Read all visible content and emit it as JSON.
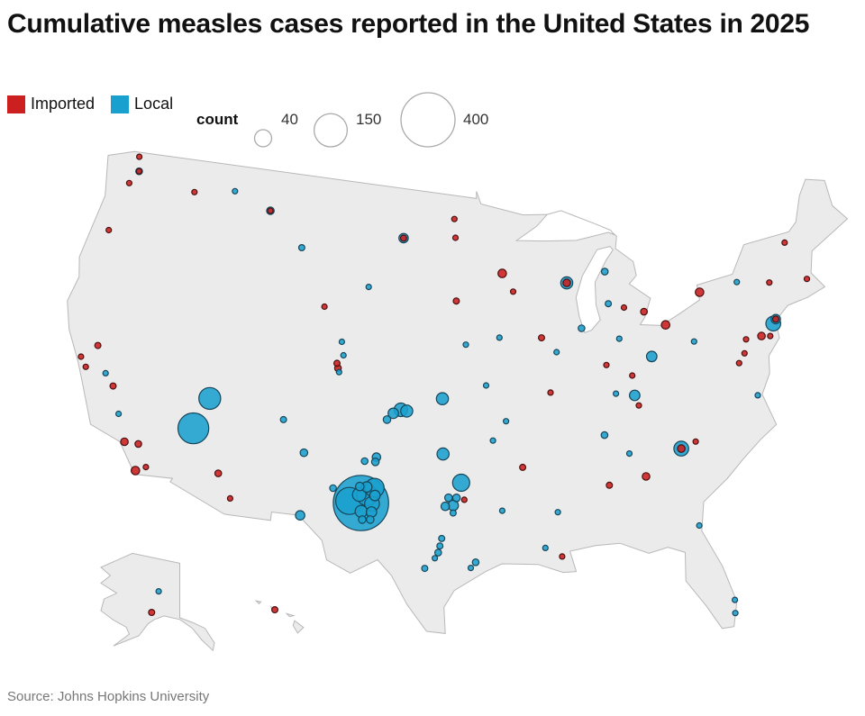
{
  "title": "Cumulative measles cases reported in the United States in 2025",
  "source": "Source: Johns Hopkins University",
  "legend": {
    "types": [
      {
        "label": "Imported",
        "color": "#cc1f1f"
      },
      {
        "label": "Local",
        "color": "#1aa0cf"
      }
    ],
    "size_title": "count",
    "sizes": [
      {
        "value": 40,
        "label": "40"
      },
      {
        "value": 150,
        "label": "150"
      },
      {
        "value": 400,
        "label": "400"
      }
    ]
  },
  "chart_data": {
    "type": "bubble-map",
    "projection": "albers-usa",
    "encoding": {
      "color": "type",
      "size": "count"
    },
    "points": [
      {
        "lon": -102.65,
        "lat": 32.74,
        "count": 420,
        "type": "Local"
      },
      {
        "lon": -103.4,
        "lat": 32.8,
        "count": 100,
        "type": "Local"
      },
      {
        "lon": -114.0,
        "lat": 35.5,
        "count": 130,
        "type": "Local"
      },
      {
        "lon": -113.3,
        "lat": 37.2,
        "count": 65,
        "type": "Local"
      },
      {
        "lon": -101.85,
        "lat": 33.58,
        "count": 50,
        "type": "Local"
      },
      {
        "lon": -102.3,
        "lat": 33.17,
        "count": 60,
        "type": "Local"
      },
      {
        "lon": -101.95,
        "lat": 32.74,
        "count": 30,
        "type": "Local"
      },
      {
        "lon": -102.8,
        "lat": 33.17,
        "count": 25,
        "type": "Local"
      },
      {
        "lon": -101.8,
        "lat": 33.18,
        "count": 15,
        "type": "Local"
      },
      {
        "lon": -102.8,
        "lat": 33.6,
        "count": 10,
        "type": "Local"
      },
      {
        "lon": -101.95,
        "lat": 32.3,
        "count": 15,
        "type": "Local"
      },
      {
        "lon": -102.5,
        "lat": 31.87,
        "count": 8,
        "type": "Local"
      },
      {
        "lon": -102.0,
        "lat": 31.9,
        "count": 8,
        "type": "Local"
      },
      {
        "lon": -102.6,
        "lat": 32.3,
        "count": 20,
        "type": "Local"
      },
      {
        "lon": -102.35,
        "lat": 33.6,
        "count": 15,
        "type": "Local"
      },
      {
        "lon": -101.85,
        "lat": 35.2,
        "count": 10,
        "type": "Local"
      },
      {
        "lon": -101.9,
        "lat": 34.95,
        "count": 8,
        "type": "Local"
      },
      {
        "lon": -102.6,
        "lat": 34.95,
        "count": 6,
        "type": "Local"
      },
      {
        "lon": -106.4,
        "lat": 31.8,
        "count": 12,
        "type": "Local"
      },
      {
        "lon": -104.5,
        "lat": 33.4,
        "count": 6,
        "type": "Local"
      },
      {
        "lon": -106.6,
        "lat": 35.1,
        "count": 8,
        "type": "Local"
      },
      {
        "lon": -108.2,
        "lat": 36.7,
        "count": 5,
        "type": "Local"
      },
      {
        "lon": -96.3,
        "lat": 34.0,
        "count": 40,
        "type": "Local"
      },
      {
        "lon": -96.8,
        "lat": 32.8,
        "count": 15,
        "type": "Local"
      },
      {
        "lon": -97.3,
        "lat": 32.75,
        "count": 10,
        "type": "Local"
      },
      {
        "lon": -96.6,
        "lat": 33.2,
        "count": 8,
        "type": "Local"
      },
      {
        "lon": -97.1,
        "lat": 33.2,
        "count": 8,
        "type": "Local"
      },
      {
        "lon": -96.8,
        "lat": 32.4,
        "count": 5,
        "type": "Local"
      },
      {
        "lon": -96.1,
        "lat": 33.1,
        "count": 4,
        "type": "Imported"
      },
      {
        "lon": -97.7,
        "lat": 30.3,
        "count": 6,
        "type": "Local"
      },
      {
        "lon": -97.6,
        "lat": 30.65,
        "count": 5,
        "type": "Local"
      },
      {
        "lon": -97.5,
        "lat": 31.05,
        "count": 5,
        "type": "Local"
      },
      {
        "lon": -98.5,
        "lat": 29.45,
        "count": 5,
        "type": "Local"
      },
      {
        "lon": -97.9,
        "lat": 30.0,
        "count": 4,
        "type": "Local"
      },
      {
        "lon": -95.4,
        "lat": 29.8,
        "count": 6,
        "type": "Local"
      },
      {
        "lon": -95.7,
        "lat": 29.5,
        "count": 4,
        "type": "Local"
      },
      {
        "lon": -97.5,
        "lat": 35.5,
        "count": 20,
        "type": "Local"
      },
      {
        "lon": -100.4,
        "lat": 37.75,
        "count": 25,
        "type": "Local"
      },
      {
        "lon": -100.0,
        "lat": 37.7,
        "count": 20,
        "type": "Local"
      },
      {
        "lon": -100.9,
        "lat": 37.55,
        "count": 15,
        "type": "Local"
      },
      {
        "lon": -101.3,
        "lat": 37.2,
        "count": 8,
        "type": "Local"
      },
      {
        "lon": -97.6,
        "lat": 38.4,
        "count": 20,
        "type": "Local"
      },
      {
        "lon": -104.9,
        "lat": 39.7,
        "count": 6,
        "type": "Imported"
      },
      {
        "lon": -105.0,
        "lat": 39.95,
        "count": 5,
        "type": "Imported"
      },
      {
        "lon": -104.8,
        "lat": 39.5,
        "count": 4,
        "type": "Local"
      },
      {
        "lon": -104.6,
        "lat": 40.4,
        "count": 4,
        "type": "Local"
      },
      {
        "lon": -111.9,
        "lat": 33.4,
        "count": 6,
        "type": "Imported"
      },
      {
        "lon": -110.9,
        "lat": 32.2,
        "count": 4,
        "type": "Imported"
      },
      {
        "lon": -118.2,
        "lat": 34.05,
        "count": 8,
        "type": "Imported"
      },
      {
        "lon": -117.1,
        "lat": 32.7,
        "count": 10,
        "type": "Imported"
      },
      {
        "lon": -117.3,
        "lat": 34.1,
        "count": 6,
        "type": "Imported"
      },
      {
        "lon": -116.5,
        "lat": 33.0,
        "count": 4,
        "type": "Imported"
      },
      {
        "lon": -122.4,
        "lat": 37.8,
        "count": 4,
        "type": "Imported"
      },
      {
        "lon": -121.9,
        "lat": 37.35,
        "count": 4,
        "type": "Imported"
      },
      {
        "lon": -121.5,
        "lat": 38.6,
        "count": 5,
        "type": "Imported"
      },
      {
        "lon": -120.5,
        "lat": 37.3,
        "count": 4,
        "type": "Local"
      },
      {
        "lon": -119.8,
        "lat": 36.75,
        "count": 5,
        "type": "Imported"
      },
      {
        "lon": -119.0,
        "lat": 35.4,
        "count": 4,
        "type": "Local"
      },
      {
        "lon": -122.3,
        "lat": 48.8,
        "count": 3,
        "type": "Imported"
      },
      {
        "lon": -122.0,
        "lat": 48.05,
        "count": 6,
        "type": "Local"
      },
      {
        "lon": -122.0,
        "lat": 48.05,
        "count": 3,
        "type": "Imported"
      },
      {
        "lon": -122.5,
        "lat": 47.3,
        "count": 3,
        "type": "Imported"
      },
      {
        "lon": -117.4,
        "lat": 47.7,
        "count": 3,
        "type": "Imported"
      },
      {
        "lon": -123.0,
        "lat": 44.6,
        "count": 3,
        "type": "Imported"
      },
      {
        "lon": -114.3,
        "lat": 48.2,
        "count": 4,
        "type": "Local"
      },
      {
        "lon": -111.3,
        "lat": 47.5,
        "count": 8,
        "type": "Local"
      },
      {
        "lon": -111.3,
        "lat": 47.5,
        "count": 3,
        "type": "Imported"
      },
      {
        "lon": -108.5,
        "lat": 45.8,
        "count": 5,
        "type": "Local"
      },
      {
        "lon": -106.3,
        "lat": 42.85,
        "count": 3,
        "type": "Imported"
      },
      {
        "lon": -104.8,
        "lat": 41.1,
        "count": 3,
        "type": "Local"
      },
      {
        "lon": -100.8,
        "lat": 46.8,
        "count": 12,
        "type": "Local"
      },
      {
        "lon": -100.8,
        "lat": 46.8,
        "count": 5,
        "type": "Imported"
      },
      {
        "lon": -96.8,
        "lat": 46.9,
        "count": 4,
        "type": "Imported"
      },
      {
        "lon": -96.9,
        "lat": 47.9,
        "count": 4,
        "type": "Imported"
      },
      {
        "lon": -103.2,
        "lat": 44.1,
        "count": 4,
        "type": "Local"
      },
      {
        "lon": -96.7,
        "lat": 43.55,
        "count": 5,
        "type": "Imported"
      },
      {
        "lon": -96.0,
        "lat": 41.25,
        "count": 3,
        "type": "Local"
      },
      {
        "lon": -93.27,
        "lat": 44.98,
        "count": 10,
        "type": "Imported"
      },
      {
        "lon": -92.5,
        "lat": 44.0,
        "count": 4,
        "type": "Imported"
      },
      {
        "lon": -88.5,
        "lat": 44.3,
        "count": 20,
        "type": "Local"
      },
      {
        "lon": -88.5,
        "lat": 44.3,
        "count": 8,
        "type": "Imported"
      },
      {
        "lon": -85.6,
        "lat": 44.7,
        "count": 6,
        "type": "Local"
      },
      {
        "lon": -85.6,
        "lat": 43.0,
        "count": 5,
        "type": "Local"
      },
      {
        "lon": -84.5,
        "lat": 42.7,
        "count": 4,
        "type": "Imported"
      },
      {
        "lon": -83.1,
        "lat": 42.35,
        "count": 6,
        "type": "Imported"
      },
      {
        "lon": -87.7,
        "lat": 41.85,
        "count": 6,
        "type": "Local"
      },
      {
        "lon": -89.6,
        "lat": 40.7,
        "count": 3,
        "type": "Local"
      },
      {
        "lon": -90.2,
        "lat": 38.6,
        "count": 3,
        "type": "Imported"
      },
      {
        "lon": -93.6,
        "lat": 41.6,
        "count": 3,
        "type": "Local"
      },
      {
        "lon": -90.6,
        "lat": 41.5,
        "count": 5,
        "type": "Imported"
      },
      {
        "lon": -86.2,
        "lat": 39.8,
        "count": 3,
        "type": "Imported"
      },
      {
        "lon": -85.1,
        "lat": 41.1,
        "count": 3,
        "type": "Local"
      },
      {
        "lon": -82.99,
        "lat": 39.96,
        "count": 15,
        "type": "Local"
      },
      {
        "lon": -81.7,
        "lat": 41.5,
        "count": 10,
        "type": "Imported"
      },
      {
        "lon": -84.5,
        "lat": 39.1,
        "count": 3,
        "type": "Imported"
      },
      {
        "lon": -79.9,
        "lat": 40.4,
        "count": 3,
        "type": "Local"
      },
      {
        "lon": -75.2,
        "lat": 40.0,
        "count": 8,
        "type": "Imported"
      },
      {
        "lon": -76.3,
        "lat": 40.0,
        "count": 4,
        "type": "Imported"
      },
      {
        "lon": -73.95,
        "lat": 40.7,
        "count": 12,
        "type": "Local"
      },
      {
        "lon": -73.95,
        "lat": 40.7,
        "count": 5,
        "type": "Imported"
      },
      {
        "lon": -74.2,
        "lat": 40.5,
        "count": 30,
        "type": "Local"
      },
      {
        "lon": -74.6,
        "lat": 39.9,
        "count": 4,
        "type": "Imported"
      },
      {
        "lon": -73.8,
        "lat": 42.65,
        "count": 3,
        "type": "Imported"
      },
      {
        "lon": -76.1,
        "lat": 43.05,
        "count": 3,
        "type": "Local"
      },
      {
        "lon": -78.9,
        "lat": 42.9,
        "count": 10,
        "type": "Imported"
      },
      {
        "lon": -71.1,
        "lat": 42.35,
        "count": 3,
        "type": "Imported"
      },
      {
        "lon": -72.0,
        "lat": 44.5,
        "count": 3,
        "type": "Imported"
      },
      {
        "lon": -76.6,
        "lat": 39.3,
        "count": 4,
        "type": "Imported"
      },
      {
        "lon": -77.1,
        "lat": 38.85,
        "count": 3,
        "type": "Imported"
      },
      {
        "lon": -76.3,
        "lat": 37.0,
        "count": 4,
        "type": "Local"
      },
      {
        "lon": -84.5,
        "lat": 38.05,
        "count": 15,
        "type": "Local"
      },
      {
        "lon": -85.75,
        "lat": 38.25,
        "count": 4,
        "type": "Local"
      },
      {
        "lon": -84.3,
        "lat": 37.5,
        "count": 3,
        "type": "Imported"
      },
      {
        "lon": -86.8,
        "lat": 36.15,
        "count": 6,
        "type": "Local"
      },
      {
        "lon": -85.3,
        "lat": 35.05,
        "count": 3,
        "type": "Local"
      },
      {
        "lon": -84.4,
        "lat": 33.75,
        "count": 8,
        "type": "Imported"
      },
      {
        "lon": -81.9,
        "lat": 34.95,
        "count": 30,
        "type": "Local"
      },
      {
        "lon": -81.9,
        "lat": 34.95,
        "count": 8,
        "type": "Imported"
      },
      {
        "lon": -80.9,
        "lat": 35.2,
        "count": 3,
        "type": "Imported"
      },
      {
        "lon": -80.1,
        "lat": 26.6,
        "count": 3,
        "type": "Local"
      },
      {
        "lon": -80.2,
        "lat": 25.9,
        "count": 3,
        "type": "Local"
      },
      {
        "lon": -81.5,
        "lat": 30.8,
        "count": 4,
        "type": "Local"
      },
      {
        "lon": -91.1,
        "lat": 30.45,
        "count": 3,
        "type": "Local"
      },
      {
        "lon": -90.1,
        "lat": 29.95,
        "count": 3,
        "type": "Imported"
      },
      {
        "lon": -93.7,
        "lat": 32.5,
        "count": 3,
        "type": "Local"
      },
      {
        "lon": -94.2,
        "lat": 36.2,
        "count": 4,
        "type": "Local"
      },
      {
        "lon": -92.3,
        "lat": 34.75,
        "count": 5,
        "type": "Imported"
      },
      {
        "lon": -94.6,
        "lat": 39.1,
        "count": 3,
        "type": "Local"
      },
      {
        "lon": -93.3,
        "lat": 37.2,
        "count": 3,
        "type": "Local"
      },
      {
        "lon": -90.2,
        "lat": 32.3,
        "count": 3,
        "type": "Local"
      },
      {
        "lon": -86.8,
        "lat": 33.5,
        "count": 5,
        "type": "Imported"
      },
      {
        "lon": -149.9,
        "lat": 61.2,
        "count": 5,
        "type": "Imported"
      },
      {
        "lon": -147.7,
        "lat": 64.8,
        "count": 4,
        "type": "Local"
      },
      {
        "lon": -157.9,
        "lat": 21.3,
        "count": 5,
        "type": "Imported"
      }
    ]
  }
}
